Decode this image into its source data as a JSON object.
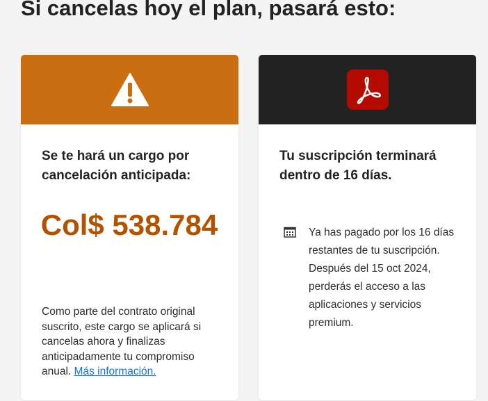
{
  "page": {
    "title": "Si cancelas hoy el plan, pasará esto:"
  },
  "fee_card": {
    "icon": "warning-icon",
    "header_color": "#c96f11",
    "heading": "Se te hará un cargo por cancelación anticipada:",
    "amount": "Col$ 538.784",
    "amount_color": "#b35300",
    "description": "Como parte del contrato original suscrito, este cargo se aplicará si cancelas ahora y finalizas anticipadamente tu compromiso anual.",
    "link": "Más información."
  },
  "subscription_card": {
    "icon": "adobe-acrobat-icon",
    "header_color": "#222222",
    "heading": "Tu suscripción terminará dentro de 16 días.",
    "info_icon": "calendar-icon",
    "info": "Ya has pagado por los 16 días restantes de tu suscripción. Después del 15 oct 2024, perderás el acceso a las aplicaciones y servicios premium."
  }
}
